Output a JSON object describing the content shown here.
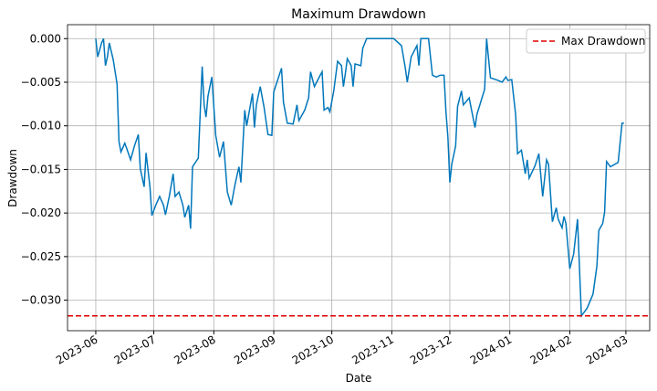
{
  "chart_data": {
    "type": "line",
    "title": "Maximum Drawdown",
    "x_label": "Date",
    "y_label": "Drawdown",
    "grid": true,
    "legend_position": "upper right",
    "xlim": [
      19494.4,
      19795.3
    ],
    "xticks": [
      {
        "value": 19509,
        "label": "2023-06"
      },
      {
        "value": 19539,
        "label": "2023-07"
      },
      {
        "value": 19570,
        "label": "2023-08"
      },
      {
        "value": 19601,
        "label": "2023-09"
      },
      {
        "value": 19631,
        "label": "2023-10"
      },
      {
        "value": 19662,
        "label": "2023-11"
      },
      {
        "value": 19692,
        "label": "2023-12"
      },
      {
        "value": 19723,
        "label": "2024-01"
      },
      {
        "value": 19754,
        "label": "2024-02"
      },
      {
        "value": 19783,
        "label": "2024-03"
      }
    ],
    "ylim": [
      -0.0335,
      0.0016
    ],
    "yticks": [
      {
        "value": 0,
        "label": "0.000"
      },
      {
        "value": -0.005,
        "label": "−0.005"
      },
      {
        "value": -0.01,
        "label": "−0.010"
      },
      {
        "value": -0.015,
        "label": "−0.015"
      },
      {
        "value": -0.02,
        "label": "−0.020"
      },
      {
        "value": -0.025,
        "label": "−0.025"
      },
      {
        "value": -0.03,
        "label": "−0.030"
      }
    ],
    "x": [
      19509,
      19510,
      19512,
      19513,
      19514,
      19515,
      19516,
      19518,
      19520,
      19521,
      19522,
      19524,
      19525,
      19527,
      19529,
      19531,
      19532,
      19534,
      19535,
      19537,
      19538,
      19540,
      19542,
      19544,
      19545,
      19547,
      19549,
      19550,
      19552,
      19554,
      19555,
      19557,
      19558,
      19559,
      19562,
      19564,
      19565,
      19566,
      19567,
      19569,
      19571,
      19573,
      19575,
      19577,
      19579,
      19581,
      19583,
      19584,
      19586,
      19587,
      19590,
      19591,
      19592,
      19594,
      19596,
      19598,
      19600,
      19601,
      19605,
      19606,
      19608,
      19611,
      19613,
      19614,
      19617,
      19619,
      19620,
      19622,
      19625,
      19626,
      19627,
      19629,
      19630,
      19632,
      19634,
      19636,
      19637,
      19638,
      19639,
      19641,
      19642,
      19643,
      19646,
      19647,
      19649,
      19663,
      19667,
      19669,
      19670,
      19672,
      19675,
      19676,
      19677,
      19681,
      19683,
      19685,
      19687,
      19689,
      19690,
      19691,
      19692,
      19693,
      19695,
      19696,
      19698,
      19699,
      19702,
      19705,
      19706,
      19710,
      19711,
      19713,
      19717,
      19719,
      19721,
      19722,
      19724,
      19726,
      19727,
      19729,
      19731,
      19732,
      19733,
      19736,
      19738,
      19740,
      19742,
      19743,
      19745,
      19747,
      19748,
      19750,
      19751,
      19752,
      19754,
      19756,
      19758,
      19760,
      19763,
      19766,
      19768,
      19769,
      19771,
      19772,
      19773,
      19775,
      19779,
      19781,
      19782
    ],
    "series": [
      {
        "color": "#0077bb",
        "values": [
          0,
          -0.0021,
          -0.0005,
          0,
          -0.0031,
          -0.0021,
          -0.0005,
          -0.0024,
          -0.0052,
          -0.0118,
          -0.013,
          -0.012,
          -0.0126,
          -0.0139,
          -0.0123,
          -0.011,
          -0.0149,
          -0.017,
          -0.0131,
          -0.017,
          -0.0203,
          -0.0191,
          -0.0181,
          -0.0191,
          -0.0202,
          -0.0181,
          -0.0155,
          -0.0181,
          -0.0176,
          -0.0191,
          -0.0205,
          -0.0191,
          -0.0218,
          -0.0147,
          -0.0137,
          -0.0032,
          -0.0076,
          -0.009,
          -0.0066,
          -0.0044,
          -0.0111,
          -0.0136,
          -0.0118,
          -0.0176,
          -0.0191,
          -0.0167,
          -0.0147,
          -0.0165,
          -0.0082,
          -0.01,
          -0.0063,
          -0.0102,
          -0.0076,
          -0.0055,
          -0.0079,
          -0.011,
          -0.0111,
          -0.0061,
          -0.0034,
          -0.0073,
          -0.0097,
          -0.0098,
          -0.0076,
          -0.0094,
          -0.0082,
          -0.0068,
          -0.0038,
          -0.0055,
          -0.0042,
          -0.0038,
          -0.0082,
          -0.0079,
          -0.0084,
          -0.006,
          -0.0026,
          -0.0031,
          -0.0055,
          -0.004,
          -0.0023,
          -0.0031,
          -0.0055,
          -0.0029,
          -0.0031,
          -0.0011,
          0,
          0,
          -0.0008,
          -0.0034,
          -0.005,
          -0.0021,
          -0.0008,
          -0.0031,
          0,
          0,
          -0.0042,
          -0.0044,
          -0.0042,
          -0.0042,
          -0.0084,
          -0.0113,
          -0.0165,
          -0.0144,
          -0.0123,
          -0.0078,
          -0.006,
          -0.0076,
          -0.0068,
          -0.0102,
          -0.0087,
          -0.0058,
          0,
          -0.0045,
          -0.0048,
          -0.005,
          -0.0044,
          -0.0048,
          -0.0047,
          -0.0087,
          -0.0132,
          -0.0128,
          -0.0155,
          -0.0139,
          -0.016,
          -0.0146,
          -0.0132,
          -0.0181,
          -0.0139,
          -0.0144,
          -0.021,
          -0.0194,
          -0.0207,
          -0.0217,
          -0.0204,
          -0.0212,
          -0.0264,
          -0.0247,
          -0.0207,
          -0.0318,
          -0.0309,
          -0.0293,
          -0.0261,
          -0.022,
          -0.0212,
          -0.0199,
          -0.0141,
          -0.0147,
          -0.0142,
          -0.0097,
          -0.0097
        ]
      }
    ],
    "hlines": [
      {
        "name": "Max Drawdown",
        "value": -0.0318,
        "color": "#e00000",
        "style": "dashed"
      }
    ]
  }
}
